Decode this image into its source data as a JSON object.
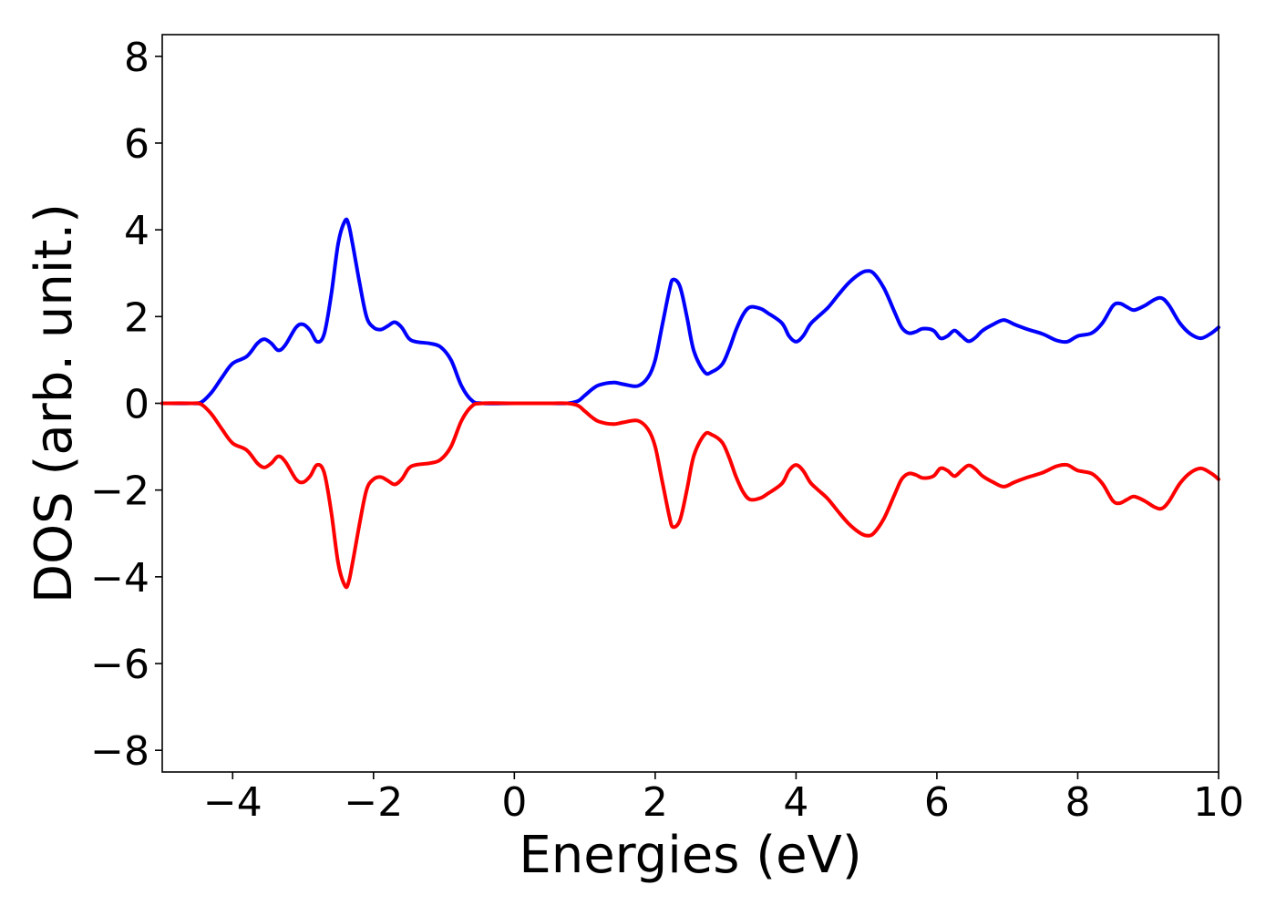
{
  "chart_data": {
    "type": "line",
    "xlabel": "Energies (eV)",
    "ylabel": "DOS (arb. unit.)",
    "xlim": [
      -5,
      10
    ],
    "ylim": [
      -8.5,
      8.5
    ],
    "grid": false,
    "x_ticks": [
      {
        "value": -4,
        "label": "−4"
      },
      {
        "value": -2,
        "label": "−2"
      },
      {
        "value": 0,
        "label": "0"
      },
      {
        "value": 2,
        "label": "2"
      },
      {
        "value": 4,
        "label": "4"
      },
      {
        "value": 6,
        "label": "6"
      },
      {
        "value": 8,
        "label": "8"
      },
      {
        "value": 10,
        "label": "10"
      }
    ],
    "y_ticks": [
      {
        "value": 8,
        "label": "8"
      },
      {
        "value": 6,
        "label": "6"
      },
      {
        "value": 4,
        "label": "4"
      },
      {
        "value": 2,
        "label": "2"
      },
      {
        "value": 0,
        "label": "0"
      },
      {
        "value": -2,
        "label": "−2"
      },
      {
        "value": -4,
        "label": "−4"
      },
      {
        "value": -6,
        "label": "−6"
      },
      {
        "value": -8,
        "label": "−8"
      }
    ],
    "series": [
      {
        "color": "#0000ff",
        "x": [
          -5.0,
          -4.6,
          -4.45,
          -4.3,
          -4.15,
          -4.0,
          -3.8,
          -3.65,
          -3.55,
          -3.45,
          -3.35,
          -3.25,
          -3.1,
          -3.0,
          -2.9,
          -2.8,
          -2.7,
          -2.6,
          -2.5,
          -2.4,
          -2.35,
          -2.3,
          -2.2,
          -2.1,
          -2.0,
          -1.9,
          -1.8,
          -1.7,
          -1.6,
          -1.5,
          -1.4,
          -1.2,
          -1.05,
          -0.9,
          -0.75,
          -0.6,
          -0.45,
          0.0,
          0.5,
          0.75,
          0.9,
          1.0,
          1.1,
          1.2,
          1.4,
          1.55,
          1.75,
          1.9,
          2.0,
          2.1,
          2.2,
          2.25,
          2.35,
          2.45,
          2.55,
          2.7,
          2.8,
          2.95,
          3.05,
          3.15,
          3.25,
          3.35,
          3.5,
          3.6,
          3.8,
          3.9,
          4.0,
          4.1,
          4.2,
          4.3,
          4.45,
          4.6,
          4.75,
          4.9,
          5.0,
          5.1,
          5.25,
          5.4,
          5.5,
          5.6,
          5.7,
          5.8,
          5.95,
          6.05,
          6.15,
          6.25,
          6.35,
          6.45,
          6.55,
          6.65,
          6.8,
          6.95,
          7.1,
          7.3,
          7.5,
          7.7,
          7.85,
          8.0,
          8.2,
          8.35,
          8.5,
          8.6,
          8.7,
          8.8,
          8.95,
          9.1,
          9.2,
          9.3,
          9.45,
          9.6,
          9.75,
          9.9,
          10.0
        ],
        "y": [
          0.0,
          0.0,
          0.02,
          0.25,
          0.6,
          0.92,
          1.08,
          1.38,
          1.48,
          1.38,
          1.22,
          1.35,
          1.75,
          1.82,
          1.68,
          1.42,
          1.6,
          2.5,
          3.7,
          4.22,
          4.1,
          3.7,
          2.8,
          2.0,
          1.75,
          1.7,
          1.78,
          1.87,
          1.75,
          1.5,
          1.42,
          1.38,
          1.3,
          1.0,
          0.4,
          0.06,
          0.0,
          0.0,
          0.0,
          0.0,
          0.05,
          0.18,
          0.32,
          0.42,
          0.48,
          0.44,
          0.4,
          0.6,
          1.0,
          1.8,
          2.6,
          2.85,
          2.7,
          2.0,
          1.2,
          0.72,
          0.72,
          0.9,
          1.25,
          1.7,
          2.05,
          2.22,
          2.18,
          2.08,
          1.85,
          1.55,
          1.42,
          1.55,
          1.82,
          1.98,
          2.2,
          2.5,
          2.78,
          2.98,
          3.05,
          3.0,
          2.65,
          2.1,
          1.75,
          1.62,
          1.65,
          1.72,
          1.68,
          1.5,
          1.55,
          1.68,
          1.55,
          1.43,
          1.52,
          1.68,
          1.82,
          1.92,
          1.82,
          1.7,
          1.6,
          1.45,
          1.42,
          1.55,
          1.62,
          1.85,
          2.25,
          2.3,
          2.22,
          2.15,
          2.25,
          2.4,
          2.42,
          2.25,
          1.85,
          1.6,
          1.5,
          1.62,
          1.75
        ]
      },
      {
        "color": "#ff0000",
        "x": [
          -5.0,
          -4.6,
          -4.45,
          -4.3,
          -4.15,
          -4.0,
          -3.8,
          -3.65,
          -3.55,
          -3.45,
          -3.35,
          -3.25,
          -3.1,
          -3.0,
          -2.9,
          -2.8,
          -2.7,
          -2.6,
          -2.5,
          -2.4,
          -2.35,
          -2.3,
          -2.2,
          -2.1,
          -2.0,
          -1.9,
          -1.8,
          -1.7,
          -1.6,
          -1.5,
          -1.4,
          -1.2,
          -1.05,
          -0.9,
          -0.75,
          -0.6,
          -0.45,
          0.0,
          0.5,
          0.75,
          0.9,
          1.0,
          1.1,
          1.2,
          1.4,
          1.55,
          1.75,
          1.9,
          2.0,
          2.1,
          2.2,
          2.25,
          2.35,
          2.45,
          2.55,
          2.7,
          2.8,
          2.95,
          3.05,
          3.15,
          3.25,
          3.35,
          3.5,
          3.6,
          3.8,
          3.9,
          4.0,
          4.1,
          4.2,
          4.3,
          4.45,
          4.6,
          4.75,
          4.9,
          5.0,
          5.1,
          5.25,
          5.4,
          5.5,
          5.6,
          5.7,
          5.8,
          5.95,
          6.05,
          6.15,
          6.25,
          6.35,
          6.45,
          6.55,
          6.65,
          6.8,
          6.95,
          7.1,
          7.3,
          7.5,
          7.7,
          7.85,
          8.0,
          8.2,
          8.35,
          8.5,
          8.6,
          8.7,
          8.8,
          8.95,
          9.1,
          9.2,
          9.3,
          9.45,
          9.6,
          9.75,
          9.9,
          10.0
        ],
        "y": [
          0.0,
          0.0,
          -0.02,
          -0.25,
          -0.6,
          -0.92,
          -1.08,
          -1.38,
          -1.48,
          -1.38,
          -1.22,
          -1.35,
          -1.75,
          -1.82,
          -1.68,
          -1.42,
          -1.6,
          -2.5,
          -3.7,
          -4.22,
          -4.1,
          -3.7,
          -2.8,
          -2.0,
          -1.75,
          -1.7,
          -1.78,
          -1.87,
          -1.75,
          -1.5,
          -1.42,
          -1.38,
          -1.3,
          -1.0,
          -0.4,
          -0.06,
          0.0,
          0.0,
          0.0,
          0.0,
          -0.05,
          -0.18,
          -0.32,
          -0.42,
          -0.48,
          -0.44,
          -0.4,
          -0.6,
          -1.0,
          -1.8,
          -2.6,
          -2.85,
          -2.7,
          -2.0,
          -1.2,
          -0.72,
          -0.72,
          -0.9,
          -1.25,
          -1.7,
          -2.05,
          -2.22,
          -2.18,
          -2.08,
          -1.85,
          -1.55,
          -1.42,
          -1.55,
          -1.82,
          -1.98,
          -2.2,
          -2.5,
          -2.78,
          -2.98,
          -3.05,
          -3.0,
          -2.65,
          -2.1,
          -1.75,
          -1.62,
          -1.65,
          -1.72,
          -1.68,
          -1.5,
          -1.55,
          -1.68,
          -1.55,
          -1.43,
          -1.52,
          -1.68,
          -1.82,
          -1.92,
          -1.82,
          -1.7,
          -1.6,
          -1.45,
          -1.42,
          -1.55,
          -1.62,
          -1.85,
          -2.25,
          -2.3,
          -2.22,
          -2.15,
          -2.25,
          -2.4,
          -2.42,
          -2.25,
          -1.85,
          -1.6,
          -1.5,
          -1.62,
          -1.75
        ]
      }
    ]
  }
}
